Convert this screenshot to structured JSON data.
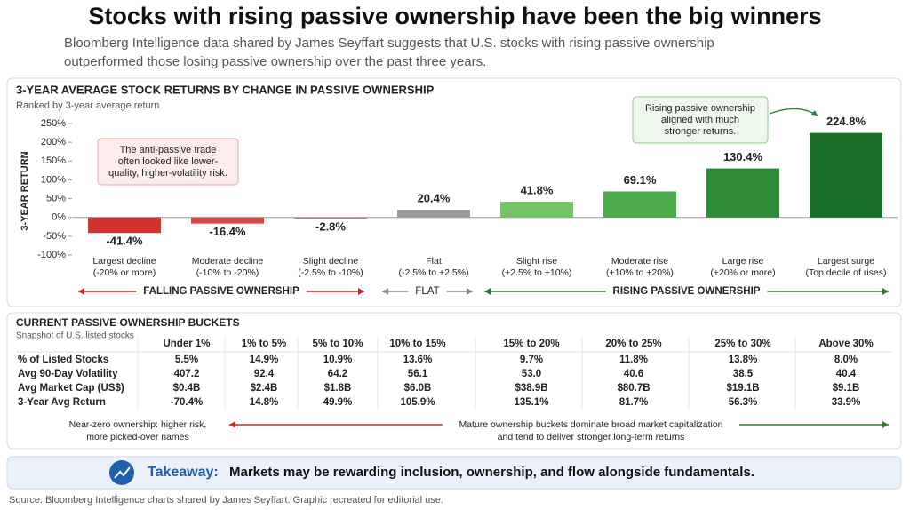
{
  "header": {
    "title": "Stocks with rising passive ownership have been the big winners",
    "subtitle": [
      "Bloomberg Intelligence data shared by James Seyffart suggests that U.S. stocks with rising passive ownership",
      "outperformed those losing passive ownership over the past three years."
    ]
  },
  "chart_data": {
    "type": "bar",
    "title": "3-YEAR AVERAGE STOCK RETURNS BY CHANGE IN PASSIVE OWNERSHIP",
    "subtitle": "Ranked by 3-year average return",
    "y_label": "3-YEAR RETURN",
    "categories": [
      "Largest decline",
      "Moderate decline",
      "Slight decline",
      "Flat",
      "Slight rise",
      "Moderate rise",
      "Large rise",
      "Largest surge"
    ],
    "category_details": [
      "(-20% or more)",
      "(-10% to -20%)",
      "(-2.5% to -10%)",
      "(-2.5% to +2.5%)",
      "(+2.5% to +10%)",
      "(+10% to +20%)",
      "(+20% or more)",
      "(Top decile of rises)"
    ],
    "values": [
      -41.4,
      -16.4,
      -2.8,
      20.4,
      41.8,
      69.1,
      130.4,
      224.8
    ],
    "value_labels": [
      "-41.4%",
      "-16.4%",
      "-2.8%",
      "20.4%",
      "41.8%",
      "69.1%",
      "130.4%",
      "224.8%"
    ],
    "colors": [
      "#d3322f",
      "#d94541",
      "#e05a55",
      "#9a9a9a",
      "#74c466",
      "#4cab4a",
      "#2e8b37",
      "#1b6e2a"
    ],
    "label_colors": [
      "#c62828",
      "#c62828",
      "#c62828",
      "#444444",
      "#2e7d32",
      "#2e7d32",
      "#1b5e20",
      "#1b5e20"
    ],
    "ylim": [
      -100,
      250
    ],
    "yticks": [
      {
        "value": -100,
        "label": "-100%"
      },
      {
        "value": -50,
        "label": "-50%"
      },
      {
        "value": 0,
        "label": "0%"
      },
      {
        "value": 50,
        "label": "50%"
      },
      {
        "value": 100,
        "label": "100%"
      },
      {
        "value": 150,
        "label": "150%"
      },
      {
        "value": 200,
        "label": "200%"
      },
      {
        "value": 250,
        "label": "250%"
      }
    ],
    "annotations": [
      [
        "The anti-passive trade",
        "often looked like lower-",
        "quality, higher-volatility risk."
      ],
      [
        "Rising passive ownership",
        "aligned with much",
        "stronger returns."
      ]
    ],
    "groups": [
      "FALLING PASSIVE OWNERSHIP",
      "FLAT",
      "RISING PASSIVE OWNERSHIP"
    ]
  },
  "table": {
    "title": "CURRENT PASSIVE OWNERSHIP BUCKETS",
    "subtitle": "Snapshot of U.S. listed stocks",
    "columns": [
      "Under 1%",
      "1% to 5%",
      "5% to 10%",
      "10% to 15%",
      "15% to 20%",
      "20% to 25%",
      "25% to 30%",
      "Above 30%"
    ],
    "column_colors": [
      "#c62828",
      "#d2691e",
      "#d9821a",
      "#3d8b3d",
      "#2e7d32",
      "#2e7d32",
      "#1b5e20",
      "#1b5e20"
    ],
    "rows": [
      {
        "label": "% of Listed Stocks",
        "cells": [
          "5.5%",
          "14.9%",
          "10.9%",
          "13.6%",
          "9.7%",
          "11.8%",
          "13.8%",
          "8.0%"
        ]
      },
      {
        "label": "Avg 90-Day Volatility",
        "cells": [
          "407.2",
          "92.4",
          "64.2",
          "56.1",
          "53.0",
          "40.6",
          "38.5",
          "40.4"
        ]
      },
      {
        "label": "Avg Market Cap (US$)",
        "cells": [
          "$0.4B",
          "$2.4B",
          "$1.8B",
          "$6.0B",
          "$38.9B",
          "$80.7B",
          "$19.1B",
          "$9.1B"
        ]
      },
      {
        "label": "3-Year Avg Return",
        "cells": [
          "-70.4%",
          "14.8%",
          "49.9%",
          "105.9%",
          "135.1%",
          "81.7%",
          "56.3%",
          "33.9%"
        ]
      }
    ],
    "notes": {
      "left": [
        "Near-zero ownership: higher risk,",
        "more picked-over names"
      ],
      "right": [
        "Mature ownership buckets dominate broad market capitalization",
        "and tend to deliver stronger long-term returns"
      ]
    }
  },
  "takeaway": {
    "label": "Takeaway:",
    "text": "Markets may be rewarding inclusion, ownership, and flow alongside fundamentals."
  },
  "source": "Source: Bloomberg Intelligence charts shared by James Seyffart. Graphic recreated for editorial use."
}
